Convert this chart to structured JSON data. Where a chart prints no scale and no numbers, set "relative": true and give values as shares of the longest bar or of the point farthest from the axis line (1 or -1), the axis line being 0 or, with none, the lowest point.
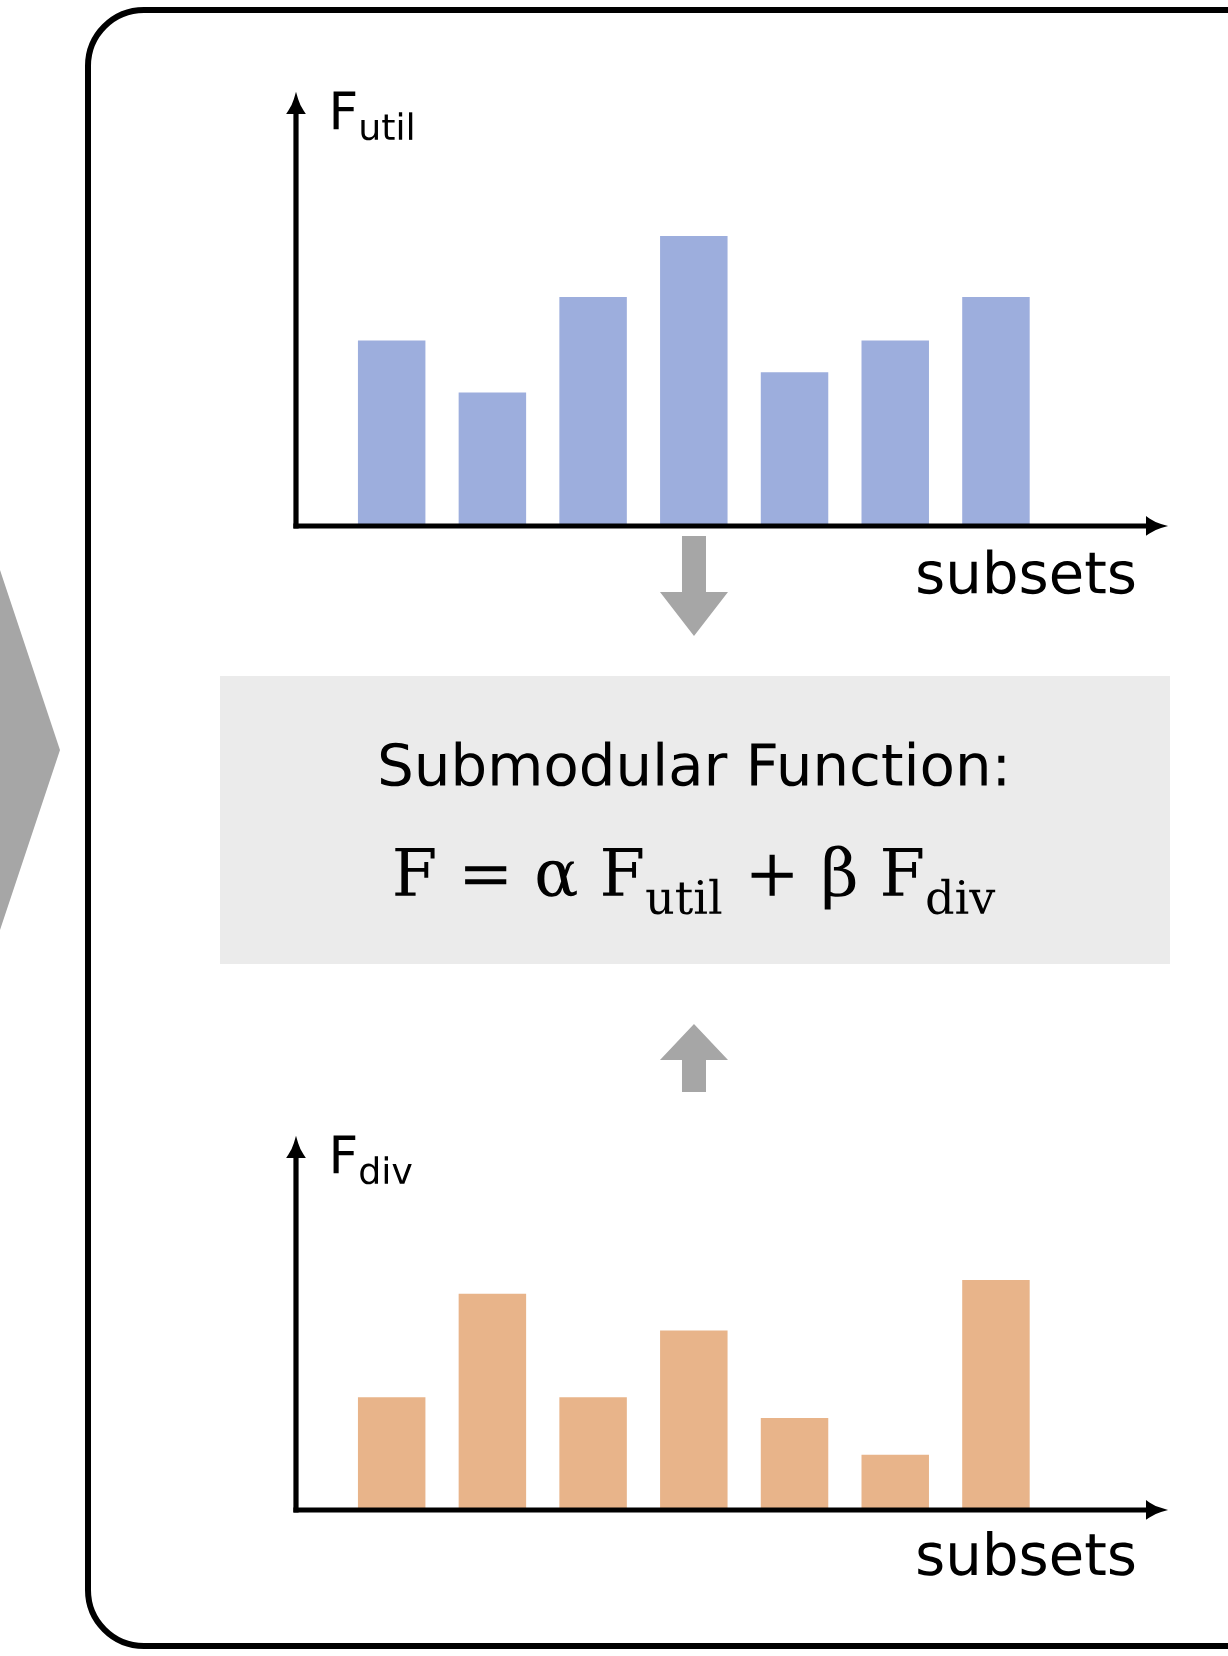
{
  "chart_data": [
    {
      "type": "bar",
      "relative": true,
      "xlabel": "subsets",
      "ylabel": "F$_{util}$",
      "categories": [
        null,
        null,
        null,
        null,
        null,
        null,
        null
      ],
      "values": [
        0.64,
        0.46,
        0.79,
        1,
        0.53,
        0.64,
        0.79
      ],
      "color": "#9daedd"
    },
    {
      "type": "other",
      "title": "Submodular Function:",
      "annotations": [
        "F = α F$_{util}$ + β F$_{div}$"
      ]
    },
    {
      "type": "bar",
      "relative": true,
      "xlabel": "subsets",
      "ylabel": "F$_{div}$",
      "categories": [
        null,
        null,
        null,
        null,
        null,
        null,
        null
      ],
      "values": [
        0.49,
        0.94,
        0.49,
        0.78,
        0.4,
        0.24,
        1
      ],
      "color": "#e8b48a"
    }
  ]
}
